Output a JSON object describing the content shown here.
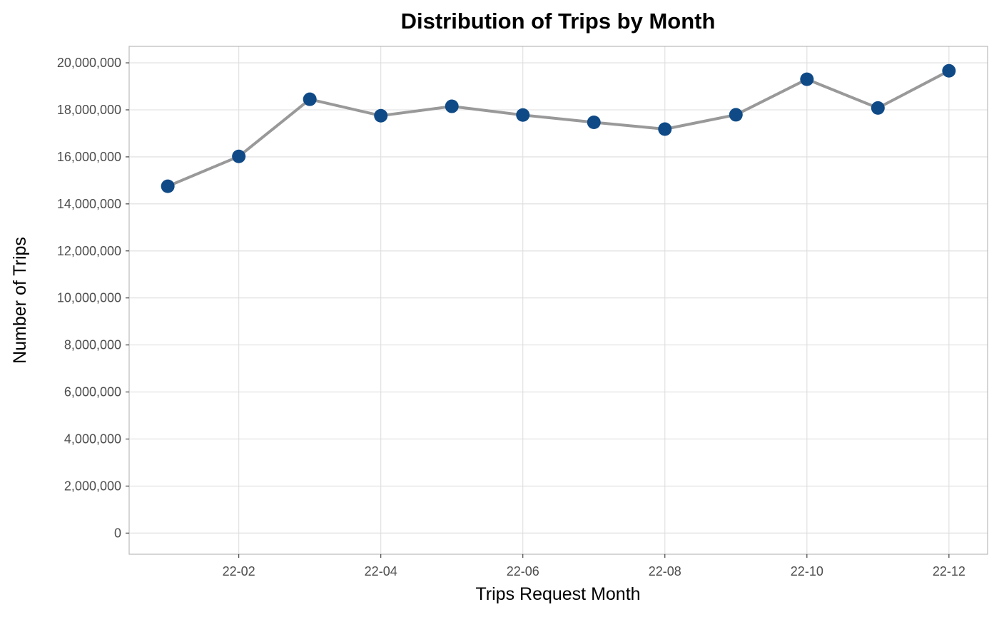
{
  "chart_data": {
    "type": "line",
    "title": "Distribution of Trips by Month",
    "xlabel": "Trips Request Month",
    "ylabel": "Number of Trips",
    "x": [
      "22-01",
      "22-02",
      "22-03",
      "22-04",
      "22-05",
      "22-06",
      "22-07",
      "22-08",
      "22-09",
      "22-10",
      "22-11",
      "22-12"
    ],
    "x_ticks": [
      "22-02",
      "22-04",
      "22-06",
      "22-08",
      "22-10",
      "22-12"
    ],
    "series": [
      {
        "values": [
          14750000,
          16020000,
          18450000,
          17750000,
          18150000,
          17780000,
          17470000,
          17180000,
          17790000,
          19300000,
          18080000,
          19660000
        ]
      }
    ],
    "y_ticks": [
      0,
      2000000,
      4000000,
      6000000,
      8000000,
      10000000,
      12000000,
      14000000,
      16000000,
      18000000,
      20000000
    ],
    "y_tick_labels": [
      "0",
      "2,000,000",
      "4,000,000",
      "6,000,000",
      "8,000,000",
      "10,000,000",
      "12,000,000",
      "14,000,000",
      "16,000,000",
      "18,000,000",
      "20,000,000"
    ],
    "ylim": [
      -900000,
      20700000
    ],
    "grid": true,
    "legend": "none",
    "colors": {
      "line": "#999999",
      "points": "#0f4a87",
      "grid": "#dedede",
      "border": "#b3b3b3"
    }
  }
}
